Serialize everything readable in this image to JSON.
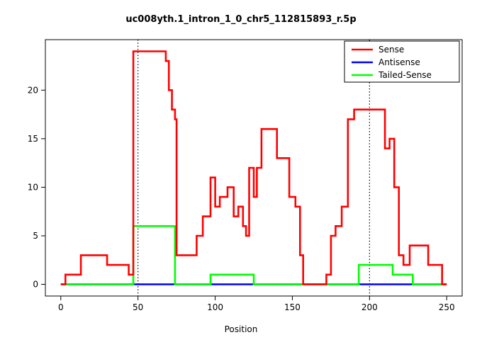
{
  "chart_data": {
    "type": "line",
    "subtype": "step",
    "title": "uc008yth.1_intron_1_0_chr5_112815893_r.5p",
    "xlabel": "Position",
    "ylabel": "",
    "xlim": [
      0,
      250
    ],
    "ylim": [
      0,
      24
    ],
    "xticks": [
      0,
      50,
      100,
      150,
      200,
      250
    ],
    "yticks": [
      0,
      5,
      10,
      15,
      20
    ],
    "grid": false,
    "vlines": [
      {
        "x": 50,
        "style": "dotted",
        "color": "#000000"
      },
      {
        "x": 200,
        "style": "dotted",
        "color": "#000000"
      }
    ],
    "legend": {
      "position": "top-right",
      "entries": [
        {
          "label": "Sense",
          "color": "#FF0000"
        },
        {
          "label": "Antisense",
          "color": "#0000FF"
        },
        {
          "label": "Tailed-Sense",
          "color": "#00FF00"
        }
      ]
    },
    "series": [
      {
        "name": "Antisense",
        "color": "#0000FF",
        "segments": [
          [
            0,
            250,
            0
          ]
        ]
      },
      {
        "name": "Tailed-Sense",
        "color": "#00FF00",
        "segments": [
          [
            0,
            47,
            0
          ],
          [
            47,
            74,
            6
          ],
          [
            74,
            97,
            0
          ],
          [
            97,
            125,
            1
          ],
          [
            125,
            193,
            0
          ],
          [
            193,
            215,
            2
          ],
          [
            215,
            228,
            1
          ],
          [
            228,
            250,
            0
          ]
        ]
      },
      {
        "name": "Sense",
        "color": "#FF0000",
        "segments": [
          [
            0,
            3,
            0
          ],
          [
            3,
            13,
            1
          ],
          [
            13,
            30,
            3
          ],
          [
            30,
            44,
            2
          ],
          [
            44,
            47,
            1
          ],
          [
            47,
            68,
            24
          ],
          [
            68,
            70,
            23
          ],
          [
            70,
            72,
            20
          ],
          [
            72,
            74,
            18
          ],
          [
            74,
            75,
            17
          ],
          [
            75,
            88,
            3
          ],
          [
            88,
            92,
            5
          ],
          [
            92,
            97,
            7
          ],
          [
            97,
            100,
            11
          ],
          [
            100,
            103,
            8
          ],
          [
            103,
            108,
            9
          ],
          [
            108,
            112,
            10
          ],
          [
            112,
            115,
            7
          ],
          [
            115,
            118,
            8
          ],
          [
            118,
            120,
            6
          ],
          [
            120,
            122,
            5
          ],
          [
            122,
            125,
            12
          ],
          [
            125,
            127,
            9
          ],
          [
            127,
            130,
            12
          ],
          [
            130,
            140,
            16
          ],
          [
            140,
            148,
            13
          ],
          [
            148,
            152,
            9
          ],
          [
            152,
            155,
            8
          ],
          [
            155,
            157,
            3
          ],
          [
            157,
            172,
            0
          ],
          [
            172,
            175,
            1
          ],
          [
            175,
            178,
            5
          ],
          [
            178,
            182,
            6
          ],
          [
            182,
            186,
            8
          ],
          [
            186,
            190,
            17
          ],
          [
            190,
            210,
            18
          ],
          [
            210,
            213,
            14
          ],
          [
            213,
            216,
            15
          ],
          [
            216,
            219,
            10
          ],
          [
            219,
            222,
            3
          ],
          [
            222,
            226,
            2
          ],
          [
            226,
            238,
            4
          ],
          [
            238,
            247,
            2
          ],
          [
            247,
            250,
            0
          ]
        ]
      }
    ]
  }
}
